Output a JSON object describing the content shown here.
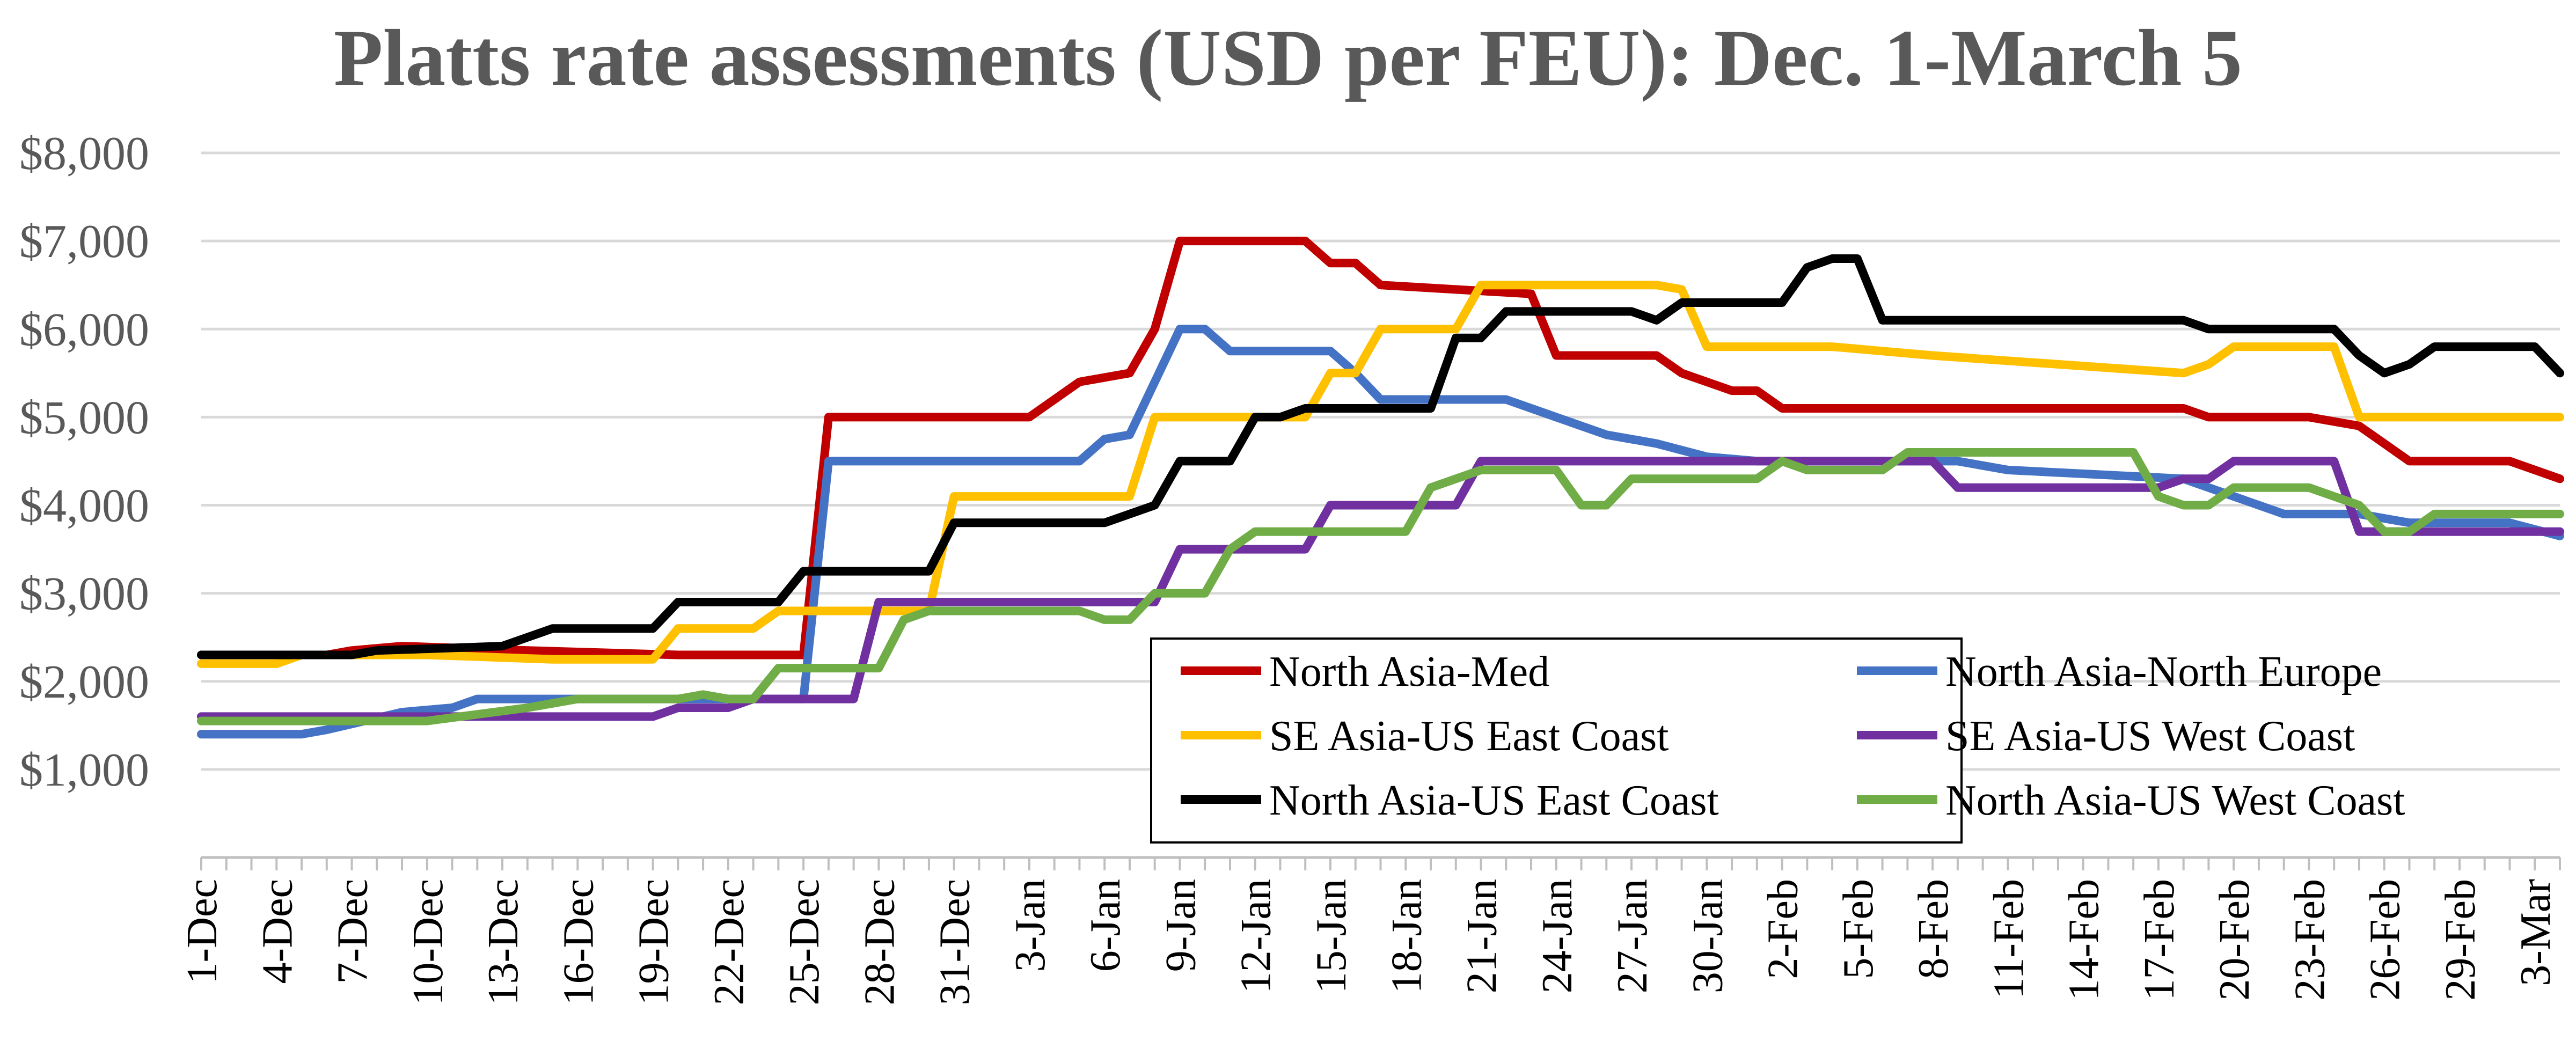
{
  "chart_data": {
    "type": "line",
    "title": "Platts rate assessments (USD per FEU): Dec. 1-March 5",
    "xlabel": "",
    "ylabel": "",
    "ylim": [
      0,
      8000
    ],
    "y_ticks": [
      "$1,000",
      "$2,000",
      "$3,000",
      "$4,000",
      "$5,000",
      "$6,000",
      "$7,000",
      "$8,000"
    ],
    "x_tick_labels": [
      "1-Dec",
      "4-Dec",
      "7-Dec",
      "10-Dec",
      "13-Dec",
      "16-Dec",
      "19-Dec",
      "22-Dec",
      "25-Dec",
      "28-Dec",
      "31-Dec",
      "3-Jan",
      "6-Jan",
      "9-Jan",
      "12-Jan",
      "15-Jan",
      "18-Jan",
      "21-Jan",
      "24-Jan",
      "27-Jan",
      "30-Jan",
      "2-Feb",
      "5-Feb",
      "8-Feb",
      "11-Feb",
      "14-Feb",
      "17-Feb",
      "20-Feb",
      "23-Feb",
      "26-Feb",
      "29-Feb",
      "3-Mar"
    ],
    "x_tick_interval_days": 3,
    "grid": "horizontal",
    "legend_position": "inside-bottom-right",
    "series": [
      {
        "name": "North Asia-Med",
        "color": "#C00000",
        "points": [
          [
            1,
            2300
          ],
          [
            6,
            2300
          ],
          [
            7,
            2350
          ],
          [
            9,
            2400
          ],
          [
            14,
            2350
          ],
          [
            20,
            2300
          ],
          [
            25,
            2300
          ],
          [
            26,
            5000
          ],
          [
            34,
            5000
          ],
          [
            36,
            5400
          ],
          [
            38,
            5500
          ],
          [
            39,
            6000
          ],
          [
            40,
            7000
          ],
          [
            45,
            7000
          ],
          [
            46,
            6750
          ],
          [
            47,
            6750
          ],
          [
            48,
            6500
          ],
          [
            54,
            6400
          ],
          [
            55,
            5700
          ],
          [
            59,
            5700
          ],
          [
            60,
            5500
          ],
          [
            62,
            5300
          ],
          [
            63,
            5300
          ],
          [
            64,
            5100
          ],
          [
            80,
            5100
          ],
          [
            81,
            5000
          ],
          [
            85,
            5000
          ],
          [
            87,
            4900
          ],
          [
            89,
            4500
          ],
          [
            93,
            4500
          ],
          [
            95,
            4300
          ]
        ]
      },
      {
        "name": "North Asia-North Europe",
        "color": "#4472C4",
        "points": [
          [
            1,
            1400
          ],
          [
            5,
            1400
          ],
          [
            6,
            1450
          ],
          [
            9,
            1650
          ],
          [
            11,
            1700
          ],
          [
            12,
            1800
          ],
          [
            25,
            1800
          ],
          [
            26,
            4500
          ],
          [
            36,
            4500
          ],
          [
            37,
            4750
          ],
          [
            38,
            4800
          ],
          [
            40,
            6000
          ],
          [
            41,
            6000
          ],
          [
            42,
            5750
          ],
          [
            46,
            5750
          ],
          [
            47,
            5500
          ],
          [
            48,
            5200
          ],
          [
            53,
            5200
          ],
          [
            55,
            5000
          ],
          [
            57,
            4800
          ],
          [
            59,
            4700
          ],
          [
            61,
            4550
          ],
          [
            63,
            4500
          ],
          [
            71,
            4500
          ],
          [
            73,
            4400
          ],
          [
            80,
            4300
          ],
          [
            82,
            4100
          ],
          [
            84,
            3900
          ],
          [
            87,
            3900
          ],
          [
            89,
            3800
          ],
          [
            93,
            3800
          ],
          [
            95,
            3650
          ]
        ]
      },
      {
        "name": "SE Asia-US East Coast",
        "color": "#FFC000",
        "points": [
          [
            1,
            2200
          ],
          [
            4,
            2200
          ],
          [
            5,
            2300
          ],
          [
            10,
            2300
          ],
          [
            15,
            2250
          ],
          [
            19,
            2250
          ],
          [
            20,
            2600
          ],
          [
            23,
            2600
          ],
          [
            24,
            2800
          ],
          [
            30,
            2800
          ],
          [
            31,
            4100
          ],
          [
            38,
            4100
          ],
          [
            39,
            5000
          ],
          [
            45,
            5000
          ],
          [
            46,
            5500
          ],
          [
            47,
            5500
          ],
          [
            48,
            6000
          ],
          [
            51,
            6000
          ],
          [
            52,
            6500
          ],
          [
            59,
            6500
          ],
          [
            60,
            6450
          ],
          [
            61,
            5800
          ],
          [
            66,
            5800
          ],
          [
            70,
            5700
          ],
          [
            80,
            5500
          ],
          [
            81,
            5600
          ],
          [
            82,
            5800
          ],
          [
            86,
            5800
          ],
          [
            87,
            5000
          ],
          [
            95,
            5000
          ]
        ]
      },
      {
        "name": "SE Asia-US West Coast",
        "color": "#7030A0",
        "points": [
          [
            1,
            1600
          ],
          [
            19,
            1600
          ],
          [
            20,
            1700
          ],
          [
            22,
            1700
          ],
          [
            23,
            1800
          ],
          [
            27,
            1800
          ],
          [
            28,
            2900
          ],
          [
            39,
            2900
          ],
          [
            40,
            3500
          ],
          [
            45,
            3500
          ],
          [
            46,
            4000
          ],
          [
            51,
            4000
          ],
          [
            52,
            4500
          ],
          [
            70,
            4500
          ],
          [
            71,
            4200
          ],
          [
            79,
            4200
          ],
          [
            80,
            4300
          ],
          [
            81,
            4300
          ],
          [
            82,
            4500
          ],
          [
            86,
            4500
          ],
          [
            87,
            3700
          ],
          [
            95,
            3700
          ]
        ]
      },
      {
        "name": "North Asia-US East Coast",
        "color": "#000000",
        "points": [
          [
            1,
            2300
          ],
          [
            7,
            2300
          ],
          [
            8,
            2350
          ],
          [
            13,
            2400
          ],
          [
            14,
            2500
          ],
          [
            15,
            2600
          ],
          [
            19,
            2600
          ],
          [
            20,
            2900
          ],
          [
            24,
            2900
          ],
          [
            25,
            3250
          ],
          [
            30,
            3250
          ],
          [
            31,
            3800
          ],
          [
            37,
            3800
          ],
          [
            38,
            3900
          ],
          [
            39,
            4000
          ],
          [
            40,
            4500
          ],
          [
            42,
            4500
          ],
          [
            43,
            5000
          ],
          [
            44,
            5000
          ],
          [
            45,
            5100
          ],
          [
            50,
            5100
          ],
          [
            51,
            5900
          ],
          [
            52,
            5900
          ],
          [
            53,
            6200
          ],
          [
            58,
            6200
          ],
          [
            59,
            6100
          ],
          [
            60,
            6300
          ],
          [
            64,
            6300
          ],
          [
            65,
            6700
          ],
          [
            66,
            6800
          ],
          [
            67,
            6800
          ],
          [
            68,
            6100
          ],
          [
            80,
            6100
          ],
          [
            81,
            6000
          ],
          [
            86,
            6000
          ],
          [
            87,
            5700
          ],
          [
            88,
            5500
          ],
          [
            89,
            5600
          ],
          [
            90,
            5800
          ],
          [
            94,
            5800
          ],
          [
            95,
            5500
          ]
        ]
      },
      {
        "name": "North Asia-US West Coast",
        "color": "#70AD47",
        "points": [
          [
            1,
            1550
          ],
          [
            10,
            1550
          ],
          [
            14,
            1700
          ],
          [
            16,
            1800
          ],
          [
            20,
            1800
          ],
          [
            21,
            1850
          ],
          [
            22,
            1800
          ],
          [
            23,
            1800
          ],
          [
            24,
            2150
          ],
          [
            28,
            2150
          ],
          [
            29,
            2700
          ],
          [
            30,
            2800
          ],
          [
            36,
            2800
          ],
          [
            37,
            2700
          ],
          [
            38,
            2700
          ],
          [
            39,
            3000
          ],
          [
            41,
            3000
          ],
          [
            42,
            3500
          ],
          [
            43,
            3700
          ],
          [
            49,
            3700
          ],
          [
            50,
            4200
          ],
          [
            51,
            4300
          ],
          [
            52,
            4400
          ],
          [
            55,
            4400
          ],
          [
            56,
            4000
          ],
          [
            57,
            4000
          ],
          [
            58,
            4300
          ],
          [
            63,
            4300
          ],
          [
            64,
            4500
          ],
          [
            65,
            4400
          ],
          [
            68,
            4400
          ],
          [
            69,
            4600
          ],
          [
            78,
            4600
          ],
          [
            79,
            4100
          ],
          [
            80,
            4000
          ],
          [
            81,
            4000
          ],
          [
            82,
            4200
          ],
          [
            85,
            4200
          ],
          [
            87,
            4000
          ],
          [
            88,
            3700
          ],
          [
            89,
            3700
          ],
          [
            90,
            3900
          ],
          [
            95,
            3900
          ]
        ]
      }
    ]
  }
}
